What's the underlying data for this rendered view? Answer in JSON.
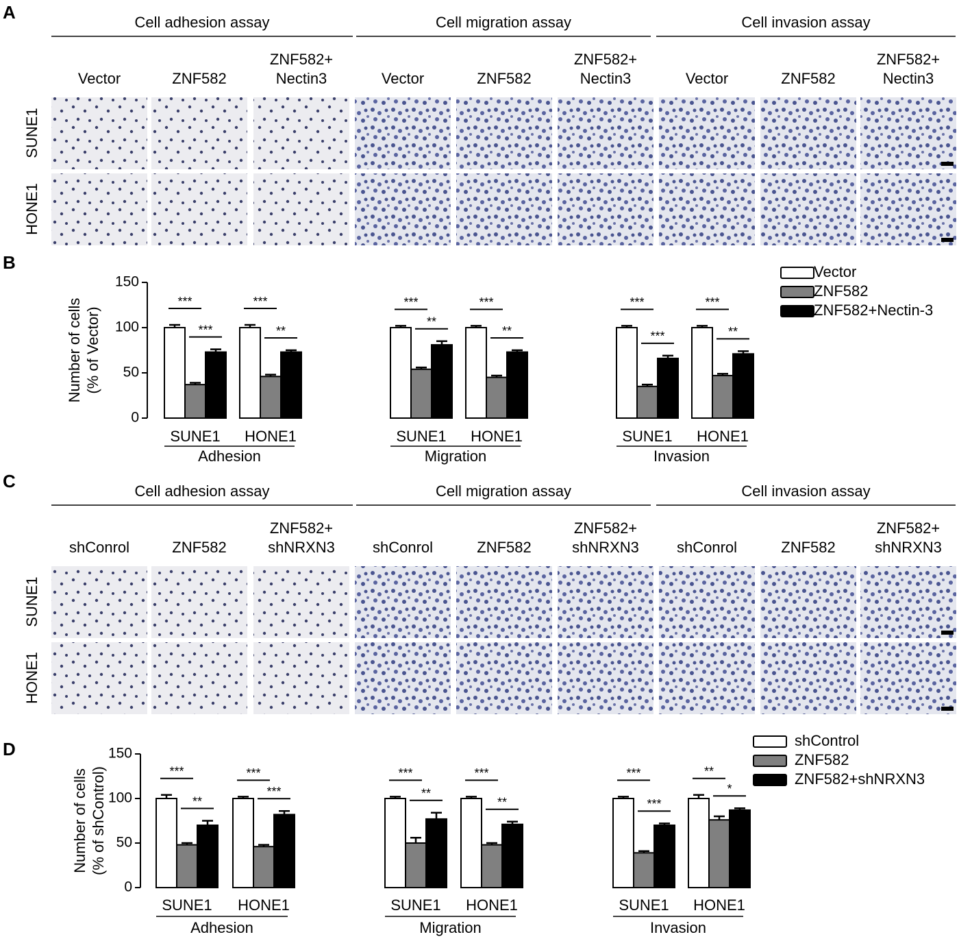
{
  "panels": [
    {
      "label": "A",
      "rows": [
        "SUNE1",
        "HONE1"
      ],
      "assays": [
        {
          "title": "Cell adhesion assay",
          "conditions": [
            "Vector",
            "ZNF582",
            [
              "ZNF582+",
              "Nectin3"
            ]
          ]
        },
        {
          "title": "Cell migration assay",
          "conditions": [
            "Vector",
            "ZNF582",
            [
              "ZNF582+",
              "Nectin3"
            ]
          ]
        },
        {
          "title": "Cell invasion assay",
          "conditions": [
            "Vector",
            "ZNF582",
            [
              "ZNF582+",
              "Nectin3"
            ]
          ]
        }
      ]
    },
    {
      "label": "C",
      "rows": [
        "SUNE1",
        "HONE1"
      ],
      "assays": [
        {
          "title": "Cell adhesion assay",
          "conditions": [
            "shConrol",
            "ZNF582",
            [
              "ZNF582+",
              "shNRXN3"
            ]
          ]
        },
        {
          "title": "Cell migration assay",
          "conditions": [
            "shConrol",
            "ZNF582",
            [
              "ZNF582+",
              "shNRXN3"
            ]
          ]
        },
        {
          "title": "Cell invasion assay",
          "conditions": [
            "shConrol",
            "ZNF582",
            [
              "ZNF582+",
              "shNRXN3"
            ]
          ]
        }
      ]
    }
  ],
  "chart_data": [
    {
      "type": "bar",
      "panel_label": "B",
      "ylabel": [
        "Number of cells",
        "(% of Vector)"
      ],
      "ylim": [
        0,
        150
      ],
      "yticks": [
        0,
        50,
        100,
        150
      ],
      "groups": [
        {
          "label": "Adhesion",
          "categories": [
            "SUNE1",
            "HONE1"
          ]
        },
        {
          "label": "Migration",
          "categories": [
            "SUNE1",
            "HONE1"
          ]
        },
        {
          "label": "Invasion",
          "categories": [
            "SUNE1",
            "HONE1"
          ]
        }
      ],
      "series": [
        {
          "name": "Vector",
          "color": "#ffffff",
          "values": [
            100,
            100,
            100,
            100,
            100,
            100
          ],
          "errors": [
            3,
            3,
            2,
            2,
            2,
            2
          ]
        },
        {
          "name": "ZNF582",
          "color": "#808080",
          "values": [
            37,
            46,
            54,
            45,
            35,
            47
          ],
          "errors": [
            2,
            2,
            2,
            2,
            2,
            2
          ]
        },
        {
          "name": "ZNF582+Nectin-3",
          "color": "#000000",
          "values": [
            73,
            73,
            81,
            73,
            66,
            71
          ],
          "errors": [
            3,
            2,
            4,
            2,
            3,
            3
          ]
        }
      ],
      "significance": [
        [
          "***",
          "***"
        ],
        [
          "***",
          "**"
        ],
        [
          "***",
          "**"
        ],
        [
          "***",
          "**"
        ],
        [
          "***",
          "***"
        ],
        [
          "***",
          "**"
        ]
      ]
    },
    {
      "type": "bar",
      "panel_label": "D",
      "ylabel": [
        "Number of cells",
        "(% of shControl)"
      ],
      "ylim": [
        0,
        150
      ],
      "yticks": [
        0,
        50,
        100,
        150
      ],
      "groups": [
        {
          "label": "Adhesion",
          "categories": [
            "SUNE1",
            "HONE1"
          ]
        },
        {
          "label": "Migration",
          "categories": [
            "SUNE1",
            "HONE1"
          ]
        },
        {
          "label": "Invasion",
          "categories": [
            "SUNE1",
            "HONE1"
          ]
        }
      ],
      "series": [
        {
          "name": "shControl",
          "color": "#ffffff",
          "values": [
            100,
            100,
            100,
            100,
            100,
            100
          ],
          "errors": [
            4,
            2,
            2,
            2,
            2,
            4
          ]
        },
        {
          "name": "ZNF582",
          "color": "#808080",
          "values": [
            48,
            46,
            50,
            48,
            39,
            76
          ],
          "errors": [
            2,
            2,
            6,
            2,
            2,
            4
          ]
        },
        {
          "name": "ZNF582+shNRXN3",
          "color": "#000000",
          "values": [
            70,
            82,
            77,
            71,
            70,
            87
          ],
          "errors": [
            5,
            4,
            7,
            3,
            2,
            2
          ]
        }
      ],
      "significance": [
        [
          "***",
          "**"
        ],
        [
          "***",
          "***"
        ],
        [
          "***",
          "**"
        ],
        [
          "***",
          "**"
        ],
        [
          "***",
          "***"
        ],
        [
          "**",
          "*"
        ]
      ]
    }
  ]
}
